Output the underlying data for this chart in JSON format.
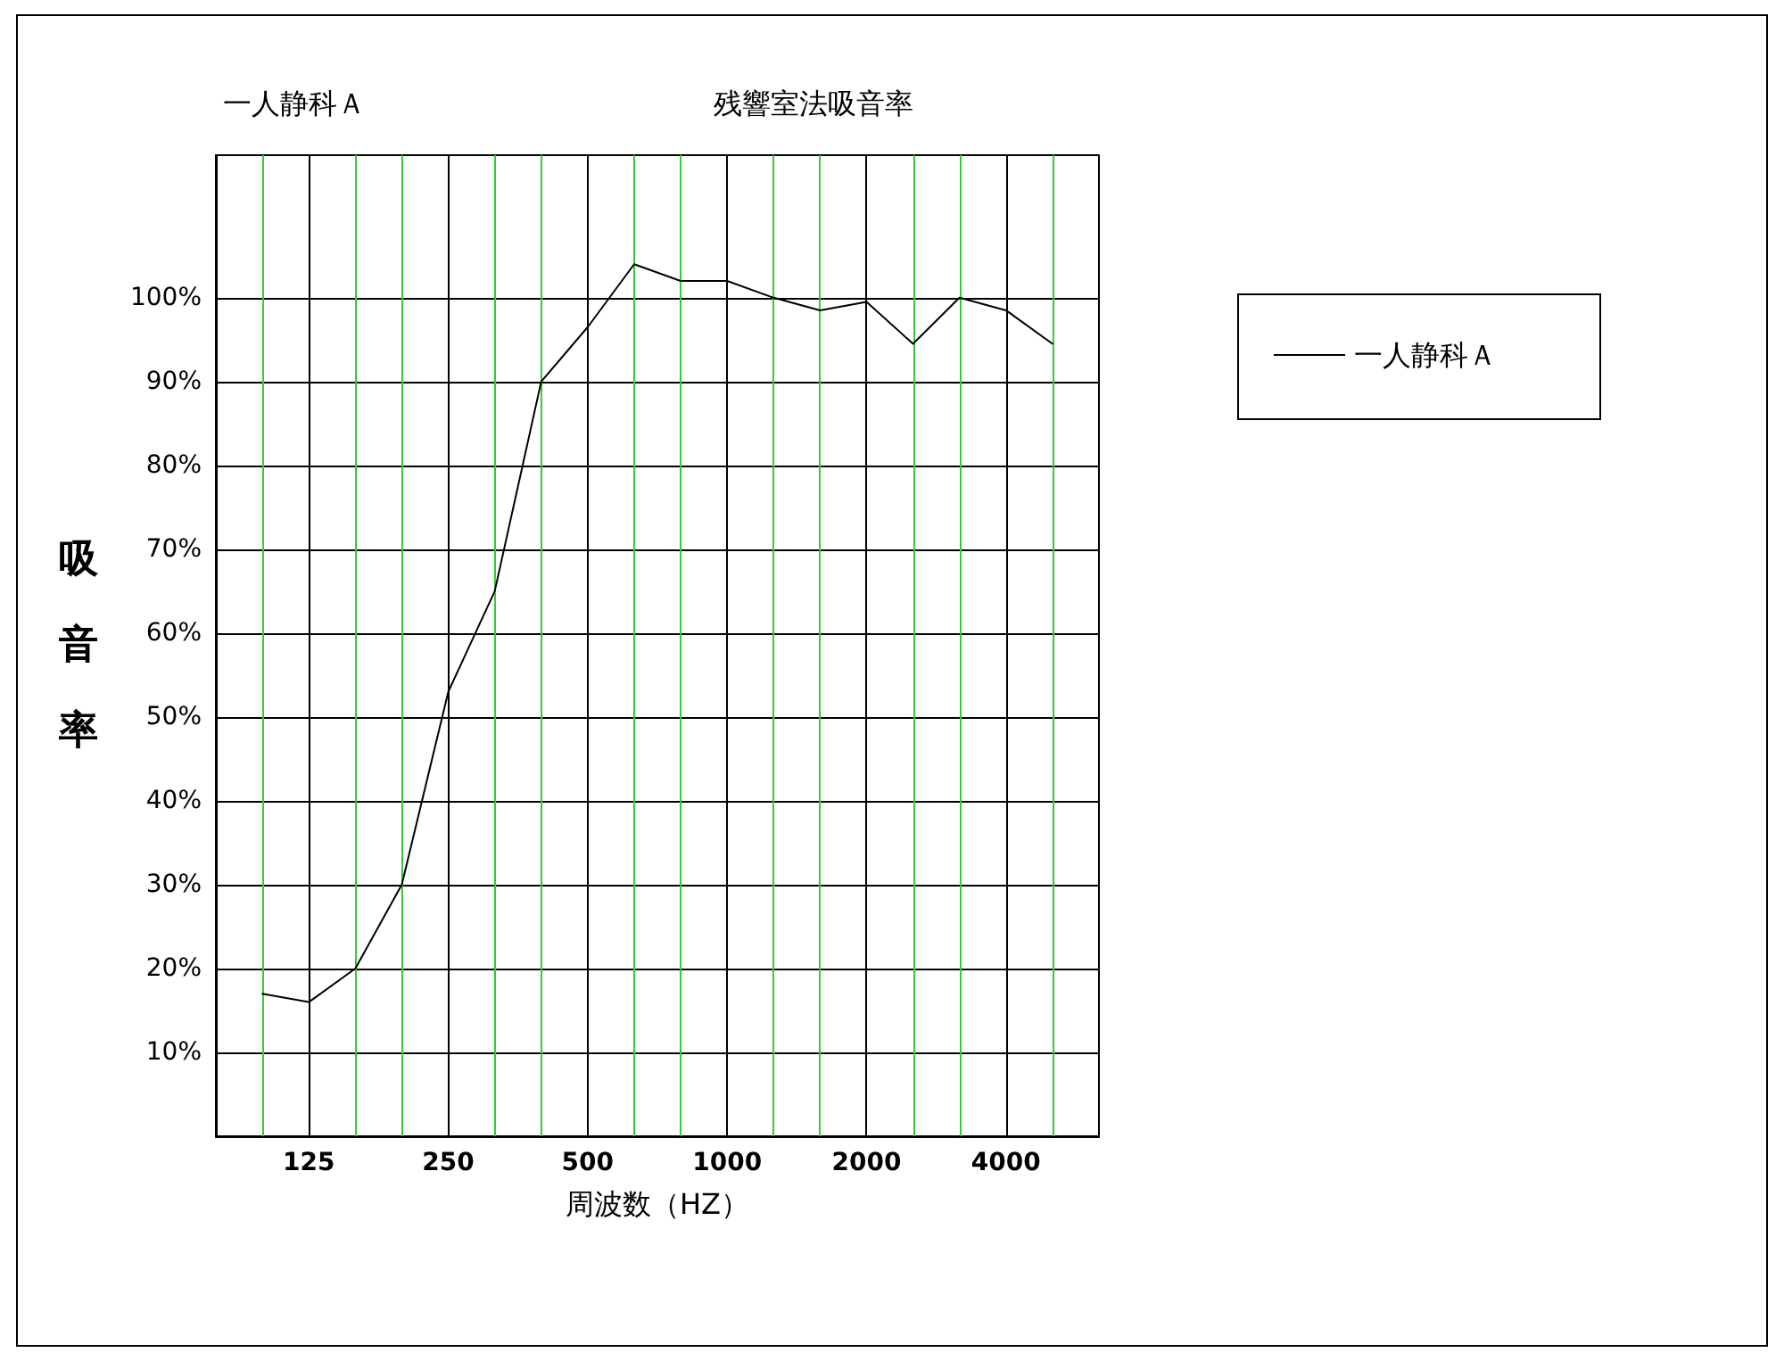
{
  "chart_data": {
    "type": "line",
    "title": "残響室法吸音率",
    "subtitle": "一人静科Ａ",
    "xlabel": "周波数（HZ）",
    "ylabel": "吸音率",
    "categories": [
      null,
      "125",
      null,
      null,
      "250",
      null,
      null,
      "500",
      null,
      null,
      "1000",
      null,
      null,
      "2000",
      null,
      null,
      "4000",
      null
    ],
    "series": [
      {
        "name": "一人静科Ａ",
        "color": "#000000",
        "values": [
          17,
          16,
          20,
          30,
          53,
          65,
          90,
          96.5,
          104,
          102,
          102,
          100,
          98.5,
          99.5,
          94.5,
          100,
          98.5,
          94.5
        ]
      }
    ],
    "ylim": [
      0,
      117
    ],
    "yticks": [
      {
        "value": 10,
        "label": "10%"
      },
      {
        "value": 20,
        "label": "20%"
      },
      {
        "value": 30,
        "label": "30%"
      },
      {
        "value": 40,
        "label": "40%"
      },
      {
        "value": 50,
        "label": "50%"
      },
      {
        "value": 60,
        "label": "60%"
      },
      {
        "value": 70,
        "label": "70%"
      },
      {
        "value": 80,
        "label": "80%"
      },
      {
        "value": 90,
        "label": "90%"
      },
      {
        "value": 100,
        "label": "100%"
      }
    ],
    "grid": true,
    "legend": "top right",
    "marker": "none",
    "line_style": "solid"
  }
}
